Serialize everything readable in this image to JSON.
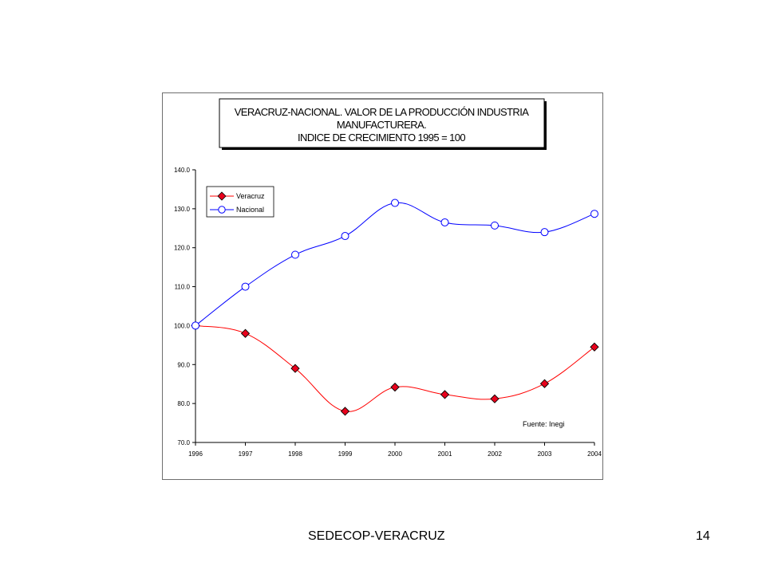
{
  "chart_data": {
    "type": "line",
    "title_lines": [
      "VERACRUZ-NACIONAL.  VALOR DE LA PRODUCCIÓN  INDUSTRIA",
      "MANUFACTURERA.",
      "INDICE DE CRECIMIENTO 1995 = 100"
    ],
    "categories": [
      "1996",
      "1997",
      "1998",
      "1999",
      "2000",
      "2001",
      "2002",
      "2003",
      "2004"
    ],
    "series": [
      {
        "name": "Veracruz",
        "values": [
          100.0,
          98.0,
          89.0,
          78.0,
          84.2,
          82.3,
          81.2,
          85.1,
          94.5
        ],
        "color": "#ff0000",
        "marker_color": "#e8001c",
        "marker": "diamond"
      },
      {
        "name": "Nacional",
        "values": [
          100.0,
          110.0,
          118.2,
          123.0,
          131.5,
          126.5,
          125.7,
          124.0,
          128.7
        ],
        "color": "#0000ff",
        "marker": "circle"
      }
    ],
    "ylim": [
      70,
      140
    ],
    "y_ticks": [
      "70.0",
      "80.0",
      "90.0",
      "100.0",
      "110.0",
      "120.0",
      "130.0",
      "140.0"
    ],
    "grid": false,
    "legend_position": "top-left",
    "source_note": "Fuente: Inegi"
  },
  "footer": {
    "left_text": "SEDECOP-VERACRUZ",
    "page_number": "14"
  }
}
